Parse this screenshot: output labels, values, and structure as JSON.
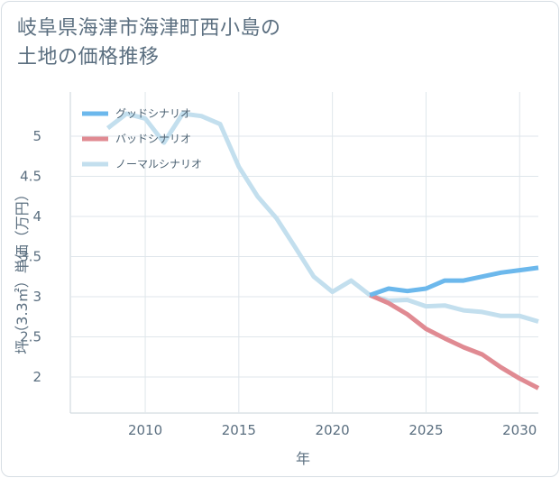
{
  "title_line1": "岐阜県海津市海津町西小島の",
  "title_line2": "土地の価格推移",
  "chart_data": {
    "type": "line",
    "xlabel": "年",
    "ylabel": "坪（3.3㎡）単価（万円）",
    "xlim": [
      2006,
      2031
    ],
    "ylim": [
      1.55,
      5.55
    ],
    "x_ticks": [
      2010,
      2015,
      2020,
      2025,
      2030
    ],
    "y_ticks": [
      2,
      2.5,
      3,
      3.5,
      4,
      4.5,
      5
    ],
    "grid": true,
    "legend_position": "top-left",
    "series": [
      {
        "name": "グッドシナリオ",
        "color": "#6cb8ec",
        "x": [
          2022,
          2023,
          2024,
          2025,
          2026,
          2027,
          2028,
          2029,
          2030,
          2031
        ],
        "y": [
          3.02,
          3.1,
          3.07,
          3.1,
          3.2,
          3.2,
          3.25,
          3.3,
          3.33,
          3.36
        ]
      },
      {
        "name": "バッドシナリオ",
        "color": "#e08a92",
        "x": [
          2022,
          2023,
          2024,
          2025,
          2026,
          2027,
          2028,
          2029,
          2030,
          2031
        ],
        "y": [
          3.02,
          2.92,
          2.78,
          2.6,
          2.48,
          2.37,
          2.28,
          2.12,
          1.98,
          1.86
        ]
      },
      {
        "name": "ノーマルシナリオ",
        "color": "#c3dfee",
        "x": [
          2008,
          2009,
          2010,
          2011,
          2012,
          2013,
          2014,
          2015,
          2016,
          2017,
          2018,
          2019,
          2020,
          2021,
          2022,
          2023,
          2024,
          2025,
          2026,
          2027,
          2028,
          2029,
          2030,
          2031
        ],
        "y": [
          5.1,
          5.28,
          5.22,
          4.92,
          5.28,
          5.25,
          5.15,
          4.62,
          4.25,
          3.98,
          3.62,
          3.25,
          3.06,
          3.2,
          3.02,
          2.95,
          2.96,
          2.88,
          2.89,
          2.83,
          2.81,
          2.76,
          2.76,
          2.69
        ]
      }
    ]
  }
}
